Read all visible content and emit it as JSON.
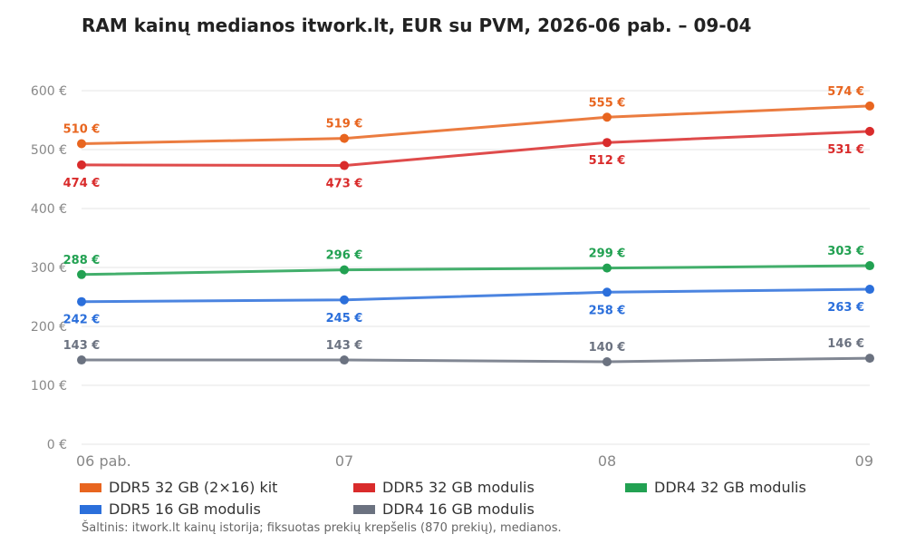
{
  "title": "RAM kainų medianos itwork.lt, EUR su PVM, 2026-06 pab. – 09-04",
  "source": "Šaltinis: itwork.lt kainų istorija; fiksuotas prekių krepšelis (870 prekių), medianos.",
  "chart_data": {
    "type": "line",
    "categories": [
      "06 pab.",
      "07",
      "08",
      "09"
    ],
    "ylim": [
      0,
      600
    ],
    "yticks": [
      0,
      100,
      200,
      300,
      400,
      500,
      600
    ],
    "ytick_labels": [
      "0 €",
      "100 €",
      "200 €",
      "300 €",
      "400 €",
      "500 €",
      "600 €"
    ],
    "grid": true,
    "legend_position": "bottom",
    "series": [
      {
        "name": "DDR5 32 GB (2×16) kit",
        "color": "#e8651f",
        "values": [
          510,
          519,
          555,
          574
        ],
        "labels": [
          "510 €",
          "519 €",
          "555 €",
          "574 €"
        ],
        "label_side": [
          "above",
          "above",
          "above",
          "above"
        ]
      },
      {
        "name": "DDR5 32 GB modulis",
        "color": "#d92b2b",
        "values": [
          474,
          473,
          512,
          531
        ],
        "labels": [
          "474 €",
          "473 €",
          "512 €",
          "531 €"
        ],
        "label_side": [
          "below",
          "below",
          "below",
          "below"
        ]
      },
      {
        "name": "DDR4 32 GB modulis",
        "color": "#22a152",
        "values": [
          288,
          296,
          299,
          303
        ],
        "labels": [
          "288 €",
          "296 €",
          "299 €",
          "303 €"
        ],
        "label_side": [
          "above",
          "above",
          "above",
          "above"
        ]
      },
      {
        "name": "DDR5 16 GB modulis",
        "color": "#2b6fdb",
        "values": [
          242,
          245,
          258,
          263
        ],
        "labels": [
          "242 €",
          "245 €",
          "258 €",
          "263 €"
        ],
        "label_side": [
          "below",
          "below",
          "below",
          "below"
        ]
      },
      {
        "name": "DDR4 16 GB modulis",
        "color": "#6b7280",
        "values": [
          143,
          143,
          140,
          146
        ],
        "labels": [
          "143 €",
          "143 €",
          "140 €",
          "146 €"
        ],
        "label_side": [
          "above",
          "above",
          "above",
          "above"
        ]
      }
    ]
  }
}
